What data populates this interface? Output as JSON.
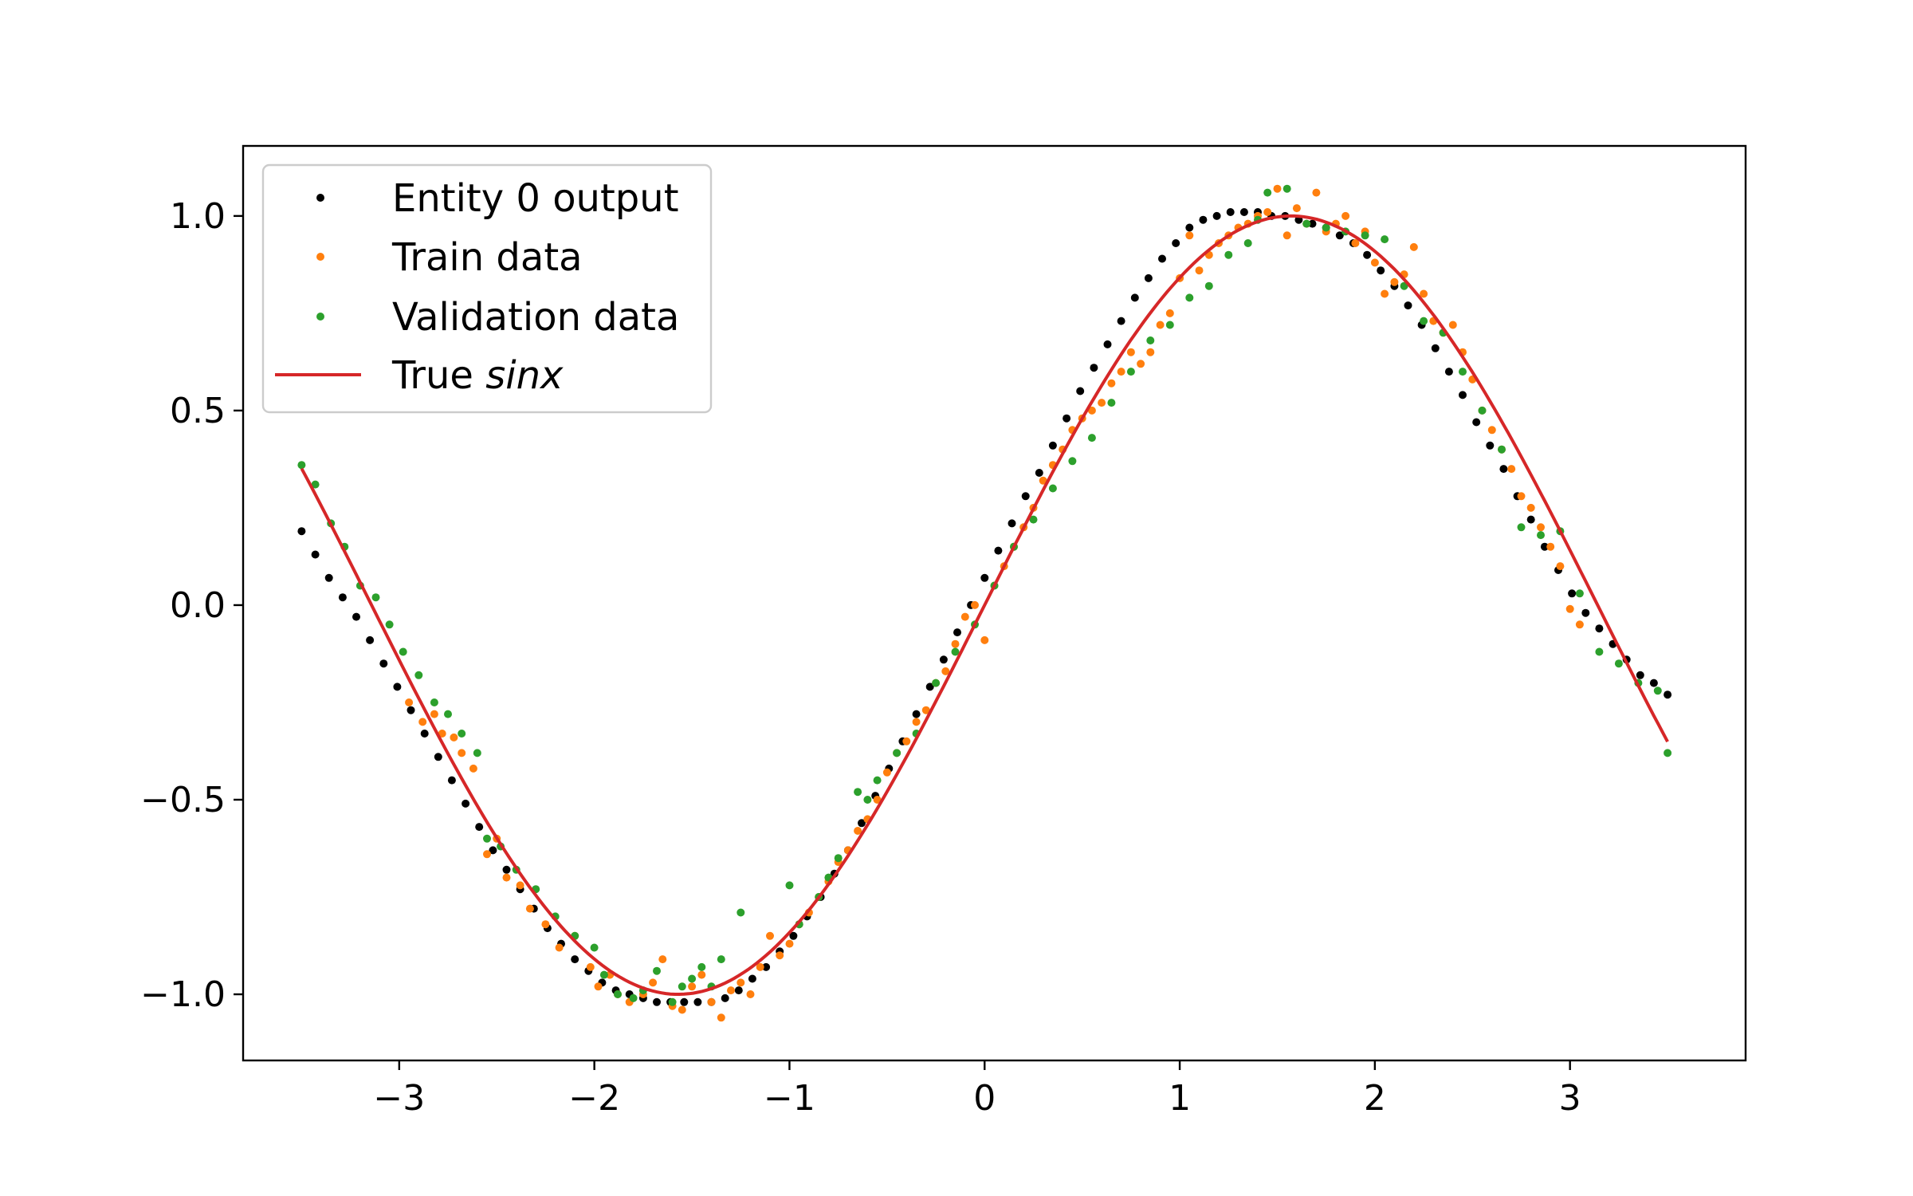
{
  "chart_data": {
    "type": "scatter",
    "title": "",
    "xlabel": "",
    "ylabel": "",
    "xlim": [
      -3.8,
      3.9
    ],
    "ylim": [
      -1.17,
      1.18
    ],
    "xticks": [
      -3,
      -2,
      -1,
      0,
      1,
      2,
      3
    ],
    "xtick_labels": [
      "−3",
      "−2",
      "−1",
      "0",
      "1",
      "2",
      "3"
    ],
    "yticks": [
      -1.0,
      -0.5,
      0.0,
      0.5,
      1.0
    ],
    "ytick_labels": [
      "−1.0",
      "−0.5",
      "0.0",
      "0.5",
      "1.0"
    ],
    "grid": false,
    "legend_position": "upper-left",
    "legend": {
      "entity": "Entity 0 output",
      "train": "Train data",
      "validation": "Validation data",
      "true_prefix": "True ",
      "true_math": "sinx"
    },
    "series": [
      {
        "name": "Entity 0 output",
        "kind": "scatter",
        "color": "#000000",
        "x": [
          -3.5,
          -3.43,
          -3.36,
          -3.29,
          -3.22,
          -3.15,
          -3.08,
          -3.01,
          -2.94,
          -2.87,
          -2.8,
          -2.73,
          -2.66,
          -2.59,
          -2.52,
          -2.45,
          -2.38,
          -2.31,
          -2.24,
          -2.17,
          -2.1,
          -2.03,
          -1.96,
          -1.89,
          -1.82,
          -1.75,
          -1.68,
          -1.61,
          -1.54,
          -1.47,
          -1.4,
          -1.33,
          -1.26,
          -1.19,
          -1.12,
          -1.05,
          -0.98,
          -0.91,
          -0.84,
          -0.77,
          -0.7,
          -0.63,
          -0.56,
          -0.49,
          -0.42,
          -0.35,
          -0.28,
          -0.21,
          -0.14,
          -0.07,
          0.0,
          0.07,
          0.14,
          0.21,
          0.28,
          0.35,
          0.42,
          0.49,
          0.56,
          0.63,
          0.7,
          0.77,
          0.84,
          0.91,
          0.98,
          1.05,
          1.12,
          1.19,
          1.26,
          1.33,
          1.4,
          1.47,
          1.54,
          1.61,
          1.68,
          1.75,
          1.82,
          1.89,
          1.96,
          2.03,
          2.1,
          2.17,
          2.24,
          2.31,
          2.38,
          2.45,
          2.52,
          2.59,
          2.66,
          2.73,
          2.8,
          2.87,
          2.94,
          3.01,
          3.08,
          3.15,
          3.22,
          3.29,
          3.36,
          3.43,
          3.5
        ],
        "y": [
          0.19,
          0.13,
          0.07,
          0.02,
          -0.03,
          -0.09,
          -0.15,
          -0.21,
          -0.27,
          -0.33,
          -0.39,
          -0.45,
          -0.51,
          -0.57,
          -0.63,
          -0.68,
          -0.73,
          -0.78,
          -0.83,
          -0.87,
          -0.91,
          -0.94,
          -0.97,
          -0.99,
          -1.0,
          -1.01,
          -1.02,
          -1.02,
          -1.02,
          -1.02,
          -1.02,
          -1.01,
          -0.99,
          -0.96,
          -0.93,
          -0.89,
          -0.85,
          -0.8,
          -0.75,
          -0.69,
          -0.63,
          -0.56,
          -0.49,
          -0.42,
          -0.35,
          -0.28,
          -0.21,
          -0.14,
          -0.07,
          0.0,
          0.07,
          0.14,
          0.21,
          0.28,
          0.34,
          0.41,
          0.48,
          0.55,
          0.61,
          0.67,
          0.73,
          0.79,
          0.84,
          0.89,
          0.93,
          0.97,
          0.99,
          1.0,
          1.01,
          1.01,
          1.01,
          1.0,
          1.0,
          0.99,
          0.98,
          0.97,
          0.95,
          0.93,
          0.9,
          0.86,
          0.82,
          0.77,
          0.72,
          0.66,
          0.6,
          0.54,
          0.47,
          0.41,
          0.35,
          0.28,
          0.22,
          0.15,
          0.09,
          0.03,
          -0.02,
          -0.06,
          -0.1,
          -0.14,
          -0.18,
          -0.2,
          -0.23
        ]
      },
      {
        "name": "Train data",
        "kind": "scatter",
        "color": "#ff7f0e",
        "x": [
          -2.95,
          -2.88,
          -2.82,
          -2.78,
          -2.72,
          -2.68,
          -2.62,
          -2.55,
          -2.5,
          -2.45,
          -2.38,
          -2.33,
          -2.25,
          -2.18,
          -2.1,
          -2.02,
          -1.98,
          -1.92,
          -1.88,
          -1.82,
          -1.75,
          -1.7,
          -1.65,
          -1.6,
          -1.55,
          -1.5,
          -1.45,
          -1.4,
          -1.35,
          -1.3,
          -1.25,
          -1.2,
          -1.15,
          -1.1,
          -1.05,
          -1.0,
          -0.95,
          -0.9,
          -0.85,
          -0.8,
          -0.75,
          -0.7,
          -0.65,
          -0.6,
          -0.55,
          -0.5,
          -0.45,
          -0.4,
          -0.35,
          -0.3,
          -0.25,
          -0.2,
          -0.15,
          -0.1,
          -0.05,
          0.0,
          0.05,
          0.1,
          0.15,
          0.2,
          0.25,
          0.3,
          0.35,
          0.4,
          0.45,
          0.5,
          0.55,
          0.6,
          0.65,
          0.7,
          0.75,
          0.8,
          0.85,
          0.9,
          0.95,
          1.0,
          1.05,
          1.1,
          1.15,
          1.2,
          1.25,
          1.3,
          1.35,
          1.4,
          1.45,
          1.5,
          1.55,
          1.6,
          1.65,
          1.7,
          1.75,
          1.8,
          1.85,
          1.9,
          1.95,
          2.0,
          2.05,
          2.1,
          2.15,
          2.2,
          2.25,
          2.3,
          2.35,
          2.4,
          2.45,
          2.5,
          2.55,
          2.6,
          2.65,
          2.7,
          2.75,
          2.8,
          2.85,
          2.9,
          2.95,
          3.0,
          3.05
        ],
        "y": [
          -0.25,
          -0.3,
          -0.28,
          -0.33,
          -0.34,
          -0.38,
          -0.42,
          -0.64,
          -0.6,
          -0.7,
          -0.72,
          -0.78,
          -0.82,
          -0.88,
          -0.85,
          -0.93,
          -0.98,
          -0.95,
          -1.0,
          -1.02,
          -1.0,
          -0.97,
          -0.91,
          -1.03,
          -1.04,
          -0.98,
          -0.95,
          -1.02,
          -1.06,
          -0.99,
          -0.97,
          -1.0,
          -0.93,
          -0.85,
          -0.9,
          -0.87,
          -0.82,
          -0.79,
          -0.75,
          -0.71,
          -0.66,
          -0.63,
          -0.58,
          -0.55,
          -0.5,
          -0.43,
          -0.38,
          -0.35,
          -0.3,
          -0.27,
          -0.2,
          -0.17,
          -0.1,
          -0.03,
          0.0,
          -0.09,
          0.05,
          0.1,
          0.15,
          0.2,
          0.25,
          0.32,
          0.36,
          0.4,
          0.45,
          0.48,
          0.5,
          0.52,
          0.57,
          0.6,
          0.65,
          0.62,
          0.65,
          0.72,
          0.75,
          0.84,
          0.95,
          0.86,
          0.9,
          0.93,
          0.95,
          0.97,
          0.98,
          1.0,
          1.01,
          1.07,
          0.95,
          1.02,
          0.98,
          1.06,
          0.96,
          0.98,
          1.0,
          0.93,
          0.96,
          0.88,
          0.8,
          0.83,
          0.85,
          0.92,
          0.8,
          0.73,
          0.7,
          0.72,
          0.65,
          0.58,
          0.5,
          0.45,
          0.4,
          0.35,
          0.28,
          0.25,
          0.2,
          0.15,
          0.1,
          -0.01,
          -0.05
        ]
      },
      {
        "name": "Validation data",
        "kind": "scatter",
        "color": "#2ca02c",
        "x": [
          -3.5,
          -3.43,
          -3.35,
          -3.28,
          -3.2,
          -3.12,
          -3.05,
          -2.98,
          -2.9,
          -2.82,
          -2.75,
          -2.68,
          -2.6,
          -2.55,
          -2.48,
          -2.4,
          -2.3,
          -2.2,
          -2.1,
          -2.0,
          -1.95,
          -1.88,
          -1.8,
          -1.75,
          -1.68,
          -1.6,
          -1.55,
          -1.5,
          -1.45,
          -1.4,
          -1.35,
          -1.25,
          -1.0,
          -0.95,
          -0.85,
          -0.8,
          -0.75,
          -0.65,
          -0.6,
          -0.55,
          -0.45,
          -0.35,
          -0.25,
          -0.15,
          -0.05,
          0.05,
          0.15,
          0.25,
          0.35,
          0.45,
          0.55,
          0.65,
          0.75,
          0.85,
          0.95,
          1.05,
          1.15,
          1.25,
          1.35,
          1.4,
          1.45,
          1.55,
          1.65,
          1.75,
          1.85,
          1.95,
          2.05,
          2.15,
          2.25,
          2.35,
          2.45,
          2.55,
          2.65,
          2.75,
          2.85,
          2.95,
          3.05,
          3.15,
          3.25,
          3.35,
          3.45,
          3.5
        ],
        "y": [
          0.36,
          0.31,
          0.21,
          0.15,
          0.05,
          0.02,
          -0.05,
          -0.12,
          -0.18,
          -0.25,
          -0.28,
          -0.33,
          -0.38,
          -0.6,
          -0.62,
          -0.68,
          -0.73,
          -0.8,
          -0.85,
          -0.88,
          -0.95,
          -1.0,
          -1.01,
          -0.99,
          -0.94,
          -1.02,
          -0.98,
          -0.96,
          -0.93,
          -0.98,
          -0.91,
          -0.79,
          -0.72,
          -0.82,
          -0.75,
          -0.7,
          -0.65,
          -0.48,
          -0.5,
          -0.45,
          -0.38,
          -0.33,
          -0.2,
          -0.12,
          -0.05,
          0.05,
          0.15,
          0.22,
          0.3,
          0.37,
          0.43,
          0.52,
          0.6,
          0.68,
          0.72,
          0.79,
          0.82,
          0.9,
          0.93,
          0.99,
          1.06,
          1.07,
          0.98,
          0.97,
          0.96,
          0.95,
          0.94,
          0.82,
          0.73,
          0.7,
          0.6,
          0.5,
          0.4,
          0.2,
          0.18,
          0.19,
          0.03,
          -0.12,
          -0.15,
          -0.2,
          -0.22,
          -0.38
        ]
      },
      {
        "name": "True sinx",
        "kind": "line",
        "color": "#d62728",
        "function": "sin",
        "x_range": [
          -3.5,
          3.5
        ]
      }
    ]
  }
}
